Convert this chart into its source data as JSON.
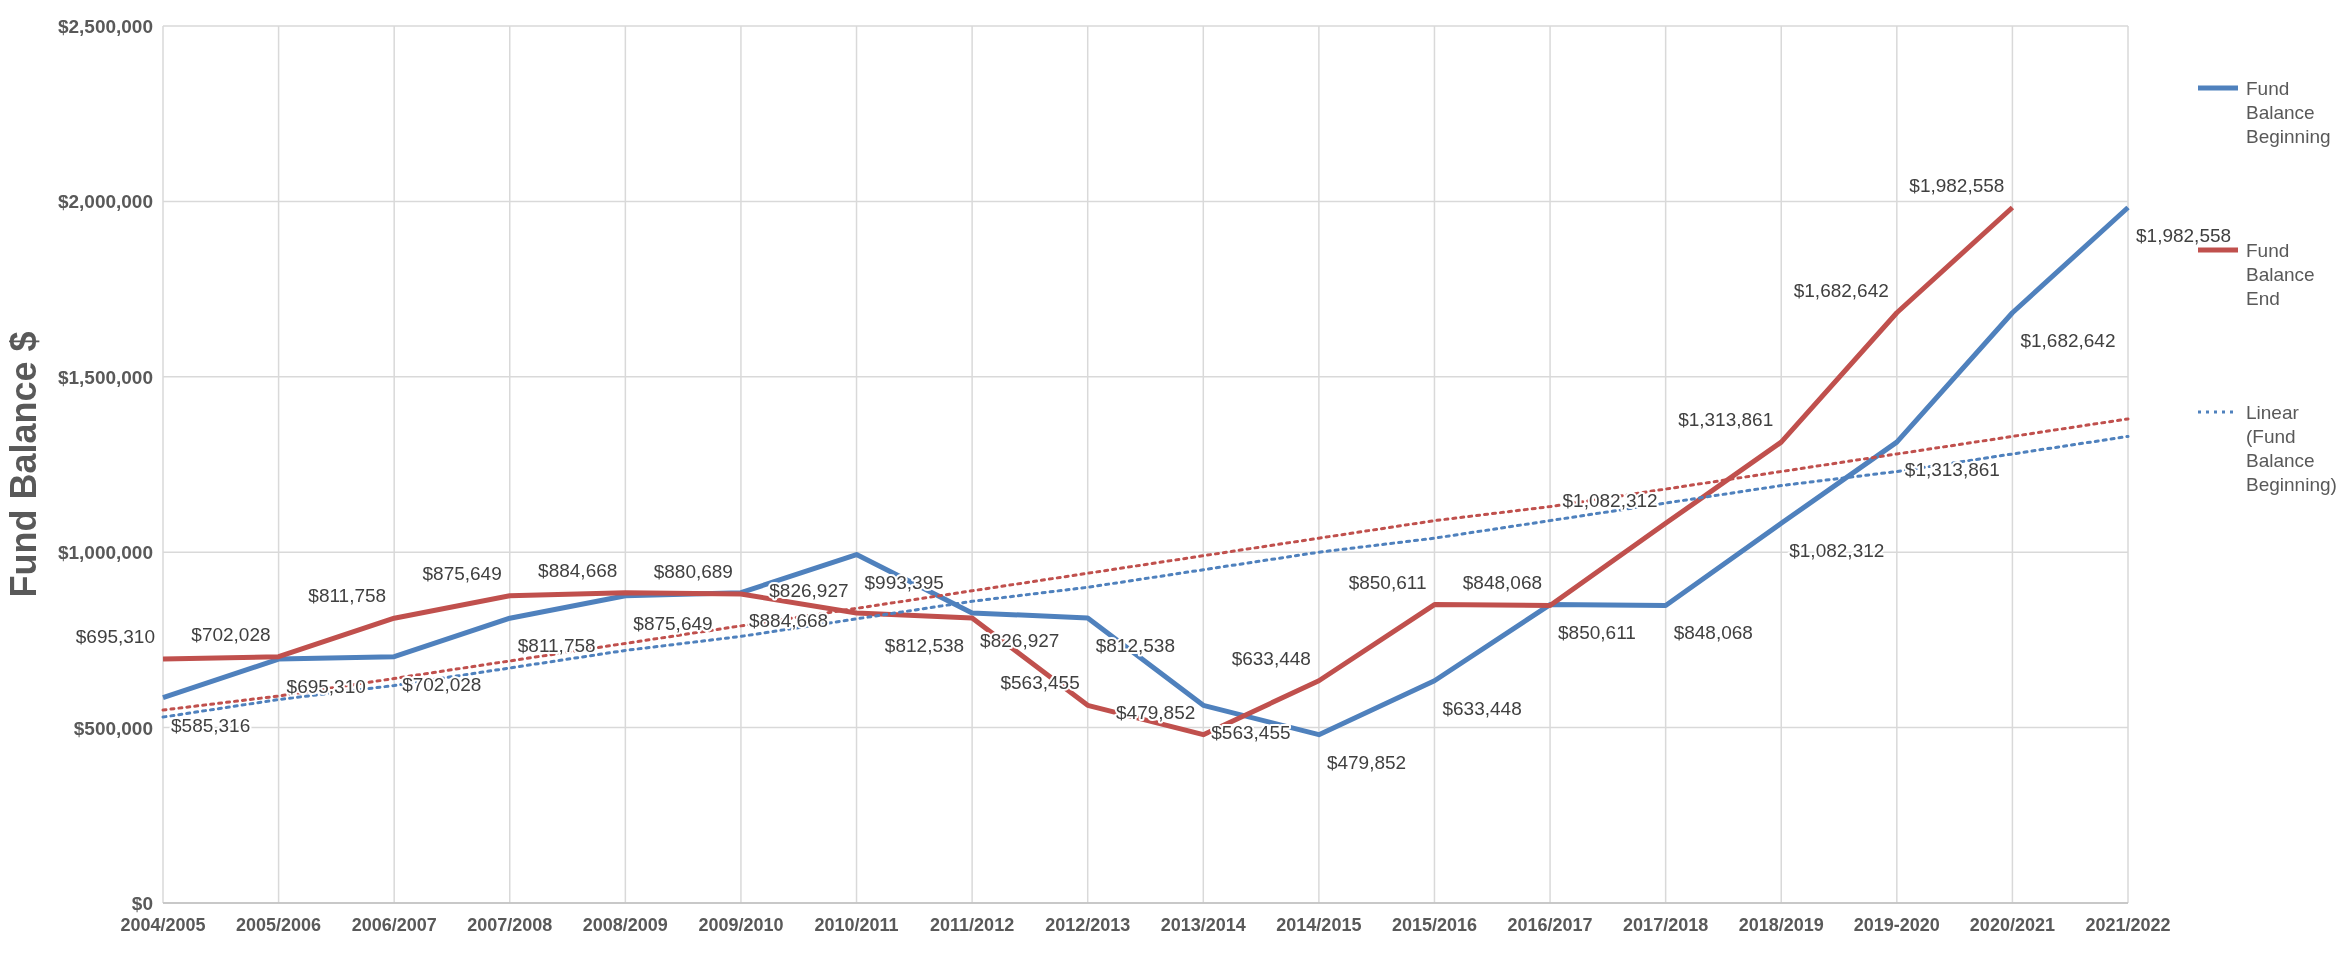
{
  "chart_data": {
    "type": "line",
    "ylabel": "Fund Balance $",
    "categories": [
      "2004/2005",
      "2005/2006",
      "2006/2007",
      "2007/2008",
      "2008/2009",
      "2009/2010",
      "2010/2011",
      "2011/2012",
      "2012/2013",
      "2013/2014",
      "2014/2015",
      "2015/2016",
      "2016/2017",
      "2017/2018",
      "2018/2019",
      "2019-2020",
      "2020/2021",
      "2021/2022"
    ],
    "ylim": [
      0,
      2500000
    ],
    "yticks": [
      {
        "value": 0,
        "label": "$0"
      },
      {
        "value": 500000,
        "label": "$500,000"
      },
      {
        "value": 1000000,
        "label": "$1,000,000"
      },
      {
        "value": 1500000,
        "label": "$1,500,000"
      },
      {
        "value": 2000000,
        "label": "$2,000,000"
      },
      {
        "value": 2500000,
        "label": "$2,500,000"
      }
    ],
    "grid": true,
    "legend": "right",
    "marker": "none",
    "series": [
      {
        "name": "Fund Balance Beginning",
        "color": "#4f81bd",
        "line_style": "solid",
        "values": [
          585316,
          695310,
          702028,
          811758,
          875649,
          884668,
          993395,
          826927,
          812538,
          563455,
          479852,
          633448,
          850611,
          848068,
          1082312,
          1313861,
          1682642,
          1982558
        ],
        "value_labels": [
          "$585,316",
          "$695,310",
          "$702,028",
          "$811,758",
          "$875,649",
          "$884,668",
          "$993,395",
          "$826,927",
          "$812,538",
          "$563,455",
          "$479,852",
          "$633,448",
          "$850,611",
          "$848,068",
          "$1,082,312",
          "$1,313,861",
          "$1,682,642",
          "$1,982,558"
        ]
      },
      {
        "name": "Fund Balance End",
        "color": "#c0504d",
        "line_style": "solid",
        "values": [
          695310,
          702028,
          811758,
          875649,
          884668,
          880689,
          826927,
          812538,
          563455,
          479852,
          633448,
          850611,
          848068,
          1082312,
          1313861,
          1682642,
          1982558,
          null
        ],
        "value_labels": [
          "$695,310",
          "$702,028",
          "$811,758",
          "$875,649",
          "$884,668",
          "$880,689",
          "$826,927",
          "$812,538",
          "$563,455",
          "$479,852",
          "$633,448",
          "$850,611",
          "$848,068",
          "$1,082,312",
          "$1,313,861",
          "$1,682,642",
          "$1,982,558",
          null
        ]
      },
      {
        "name": "Linear (Fund Balance Beginning)",
        "color": "#4f81bd",
        "line_style": "dotted",
        "values": [
          530000,
          580000,
          620000,
          670000,
          720000,
          760000,
          810000,
          860000,
          900000,
          950000,
          1000000,
          1040000,
          1090000,
          1140000,
          1190000,
          1230000,
          1280000,
          1330000
        ]
      },
      {
        "color": "#c0504d",
        "line_style": "dotted",
        "values": [
          550000,
          590000,
          640000,
          690000,
          740000,
          790000,
          840000,
          890000,
          940000,
          990000,
          1040000,
          1090000,
          1130000,
          1180000,
          1230000,
          1280000,
          1330000,
          1380000
        ]
      }
    ]
  }
}
